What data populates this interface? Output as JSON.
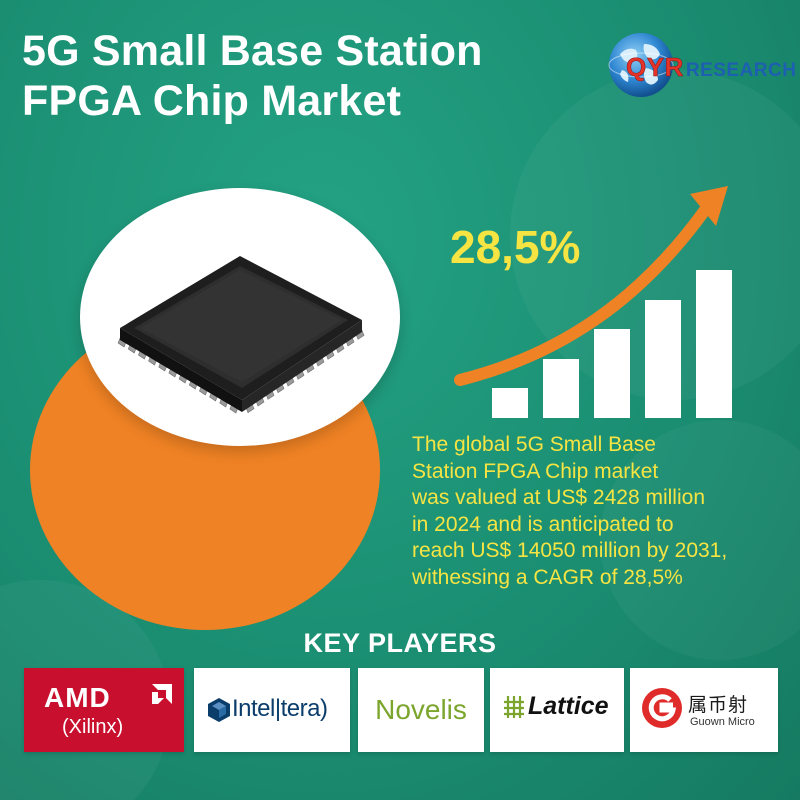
{
  "title": {
    "line1": "5G Small Base Station",
    "line2": "FPGA Chip Market"
  },
  "logo": {
    "brand": "QYR",
    "suffix": "RESEARCH",
    "icon": "globe-icon"
  },
  "highlight": {
    "cagr": "28,5%"
  },
  "description": {
    "lines": [
      "The global 5G Small Base",
      "Station FPGA Chip market",
      "was valued at US$ 2428 million",
      "in 2024 and is anticipated to",
      "reach US$ 14050 million by 2031,",
      "withessing a CAGR of 28,5%"
    ]
  },
  "key_players": {
    "heading": "KEY PLAYERS",
    "players": [
      {
        "name": "AMD",
        "sub": "(Xilinx)",
        "icon": "amd-arrow-icon"
      },
      {
        "name": "Intel|tera)",
        "icon": "intel-cube-icon"
      },
      {
        "name": "Novelis"
      },
      {
        "name": "Lattice",
        "icon": "lattice-grid-icon"
      },
      {
        "name": "属币射",
        "sub": "Guown Micro",
        "icon": "gowin-g-icon"
      }
    ]
  },
  "colors": {
    "background": "#1b8e72",
    "accent_orange": "#ef8224",
    "highlight_yellow": "#f6e443",
    "amd_red": "#c8102e"
  },
  "decor": {
    "growth_bars": [
      1,
      2,
      3,
      4,
      5
    ],
    "chip_icon": "microchip-icon",
    "arrow_icon": "growth-arrow-icon"
  }
}
